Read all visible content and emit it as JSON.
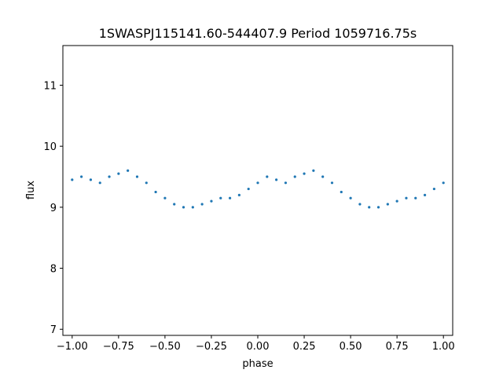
{
  "chart_data": {
    "type": "scatter",
    "title": "1SWASPJ115141.60-544407.9 Period 1059716.75s",
    "xlabel": "phase",
    "ylabel": "flux",
    "xlim": [
      -1.05,
      1.05
    ],
    "ylim": [
      6.9,
      11.65
    ],
    "x_ticks": [
      -1.0,
      -0.75,
      -0.5,
      -0.25,
      0.0,
      0.25,
      0.5,
      0.75,
      1.0
    ],
    "x_tick_labels": [
      "−1.00",
      "−0.75",
      "−0.50",
      "−0.25",
      "0.00",
      "0.25",
      "0.50",
      "0.75",
      "1.00"
    ],
    "y_ticks": [
      7,
      8,
      9,
      10,
      11
    ],
    "y_tick_labels": [
      "7",
      "8",
      "9",
      "10",
      "11"
    ],
    "grid": false,
    "marker_color": "#1f77b4",
    "series": [
      {
        "x": [
          -1.0,
          -0.95,
          -0.9,
          -0.85,
          -0.8,
          -0.75,
          -0.7,
          -0.65,
          -0.6,
          -0.55,
          -0.5,
          -0.45,
          -0.4,
          -0.35,
          -0.3,
          -0.25,
          -0.2,
          -0.15,
          -0.1,
          -0.05,
          0.0,
          0.05,
          0.1,
          0.15,
          0.2,
          0.25,
          0.3,
          0.35,
          0.4,
          0.45,
          0.5,
          0.55,
          0.6,
          0.65,
          0.7,
          0.75,
          0.8,
          0.85,
          0.9,
          0.95,
          1.0
        ],
        "y": [
          9.45,
          9.5,
          9.45,
          9.4,
          9.5,
          9.55,
          9.6,
          9.5,
          9.4,
          9.25,
          9.15,
          9.05,
          9.0,
          9.0,
          9.05,
          9.1,
          9.15,
          9.15,
          9.2,
          9.3,
          9.4,
          9.5,
          9.45,
          9.4,
          9.5,
          9.55,
          9.6,
          9.5,
          9.4,
          9.25,
          9.15,
          9.05,
          9.0,
          9.0,
          9.05,
          9.1,
          9.15,
          9.15,
          9.2,
          9.3,
          9.4
        ]
      }
    ]
  }
}
